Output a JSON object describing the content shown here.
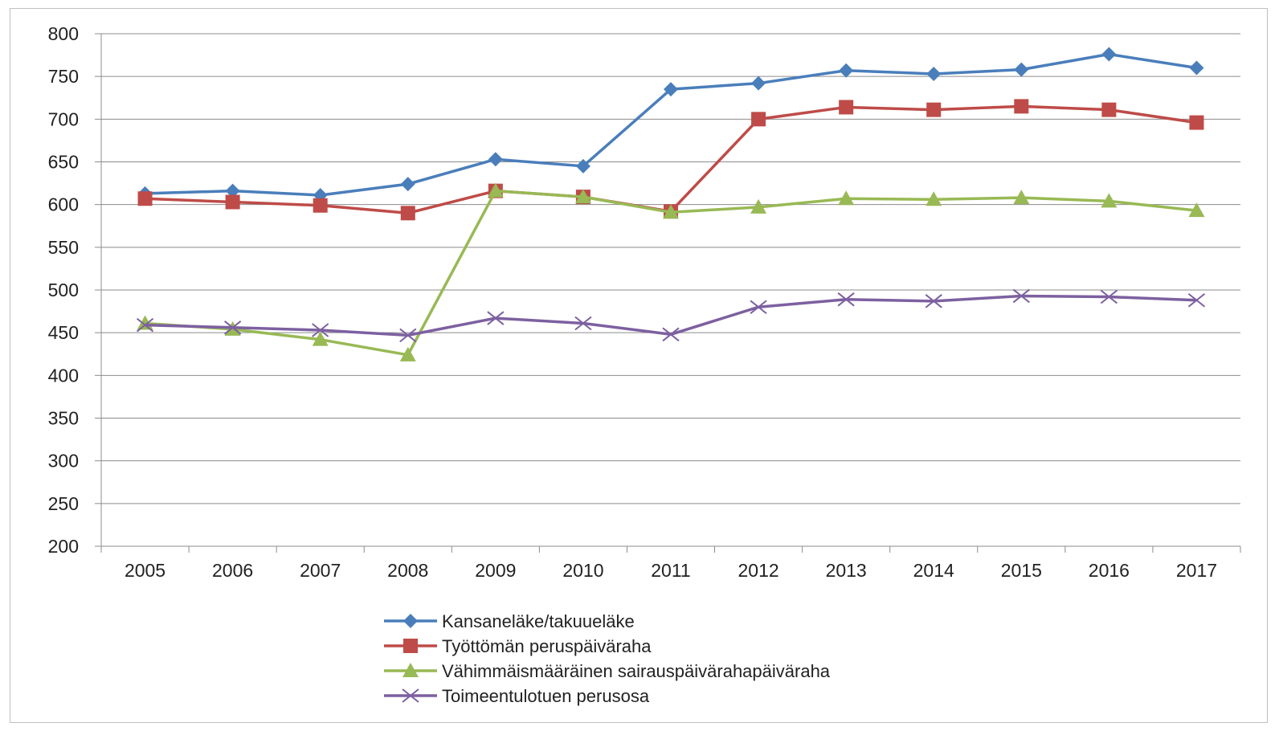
{
  "chart_data": {
    "type": "line",
    "title": "",
    "xlabel": "",
    "ylabel": "",
    "categories": [
      "2005",
      "2006",
      "2007",
      "2008",
      "2009",
      "2010",
      "2011",
      "2012",
      "2013",
      "2014",
      "2015",
      "2016",
      "2017"
    ],
    "ylim": [
      200,
      800
    ],
    "yticks": [
      200,
      250,
      300,
      350,
      400,
      450,
      500,
      550,
      600,
      650,
      700,
      750,
      800
    ],
    "grid": true,
    "legend_position": "bottom",
    "series": [
      {
        "name": "Kansaneläke/takuueläke",
        "color": "#4a7ebb",
        "marker": "diamond",
        "values": [
          613,
          616,
          611,
          624,
          653,
          645,
          735,
          742,
          757,
          753,
          758,
          776,
          760
        ]
      },
      {
        "name": "Työttömän peruspäiväraha",
        "color": "#be4b48",
        "marker": "square",
        "values": [
          607,
          603,
          599,
          590,
          616,
          609,
          592,
          700,
          714,
          711,
          715,
          711,
          696
        ]
      },
      {
        "name": "Vähimmäismääräinen sairauspäivärahapäiväraha",
        "color": "#98b954",
        "marker": "triangle",
        "values": [
          461,
          454,
          442,
          424,
          616,
          609,
          591,
          597,
          607,
          606,
          608,
          604,
          593
        ]
      },
      {
        "name": "Toimeentulotuen perusosa",
        "color": "#7d60a0",
        "marker": "x",
        "values": [
          459,
          456,
          453,
          447,
          467,
          461,
          448,
          480,
          489,
          487,
          493,
          492,
          488
        ]
      }
    ]
  }
}
